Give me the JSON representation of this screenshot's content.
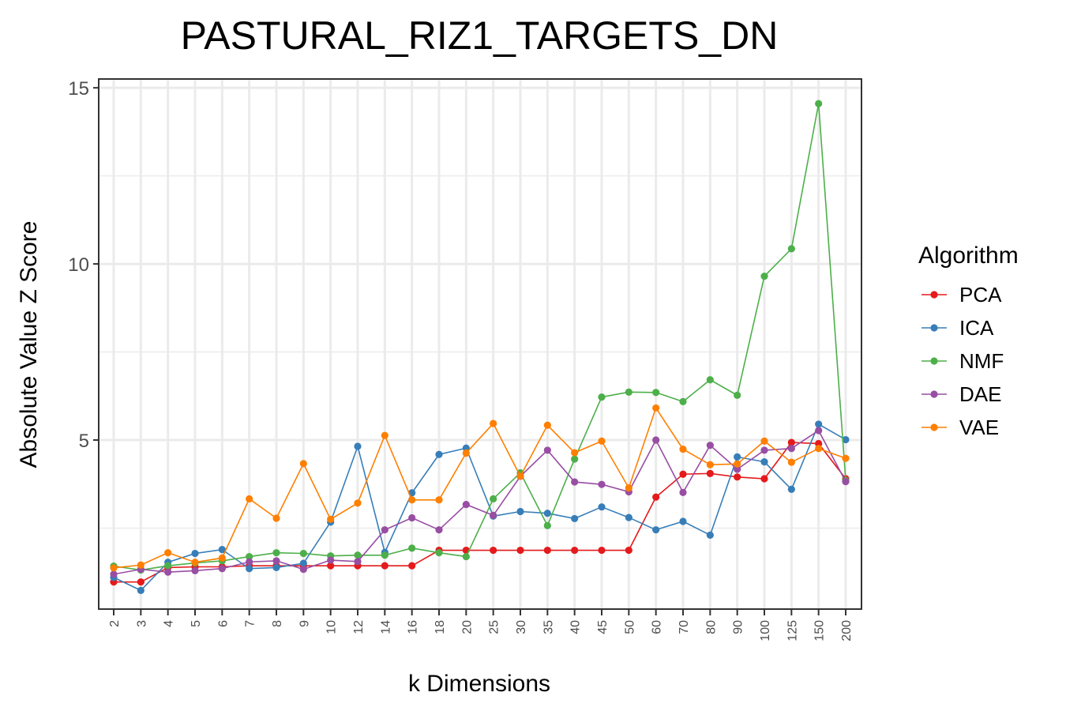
{
  "chart_data": {
    "type": "line",
    "title": "PASTURAL_RIZ1_TARGETS_DN",
    "xlabel": "k Dimensions",
    "ylabel": "Absolute Value Z Score",
    "categories": [
      "2",
      "3",
      "4",
      "5",
      "6",
      "7",
      "8",
      "9",
      "10",
      "12",
      "14",
      "16",
      "18",
      "20",
      "25",
      "30",
      "35",
      "40",
      "45",
      "50",
      "60",
      "70",
      "80",
      "90",
      "100",
      "125",
      "150",
      "200"
    ],
    "yticks": [
      5,
      10,
      15
    ],
    "ylim": [
      0.2,
      15.25
    ],
    "grid": true,
    "legend": {
      "title": "Algorithm",
      "position": "right"
    },
    "series": [
      {
        "name": "PCA",
        "color": "#e41a1c",
        "values": [
          0.97,
          0.97,
          1.38,
          1.4,
          1.4,
          1.43,
          1.43,
          1.43,
          1.43,
          1.43,
          1.43,
          1.43,
          1.87,
          1.87,
          1.87,
          1.87,
          1.87,
          1.87,
          1.87,
          1.87,
          3.38,
          4.03,
          4.05,
          3.95,
          3.9,
          4.93,
          4.9,
          3.9
        ]
      },
      {
        "name": "ICA",
        "color": "#377eb8",
        "values": [
          1.1,
          0.73,
          1.53,
          1.78,
          1.89,
          1.35,
          1.38,
          1.5,
          2.67,
          4.82,
          1.81,
          3.5,
          4.59,
          4.77,
          2.84,
          2.97,
          2.92,
          2.77,
          3.1,
          2.8,
          2.45,
          2.69,
          2.3,
          4.52,
          4.38,
          3.6,
          5.45,
          5.01
        ]
      },
      {
        "name": "NMF",
        "color": "#4daf4a",
        "values": [
          1.42,
          1.31,
          1.43,
          1.51,
          1.57,
          1.69,
          1.8,
          1.78,
          1.71,
          1.73,
          1.73,
          1.93,
          1.8,
          1.69,
          3.33,
          4.07,
          2.57,
          4.46,
          6.22,
          6.36,
          6.35,
          6.09,
          6.71,
          6.27,
          9.65,
          10.43,
          14.55,
          3.85
        ]
      },
      {
        "name": "DAE",
        "color": "#984ea3",
        "values": [
          1.19,
          1.33,
          1.25,
          1.29,
          1.35,
          1.54,
          1.57,
          1.33,
          1.59,
          1.55,
          2.45,
          2.79,
          2.45,
          3.17,
          2.86,
          3.97,
          4.71,
          3.81,
          3.74,
          3.53,
          5.0,
          3.51,
          4.85,
          4.17,
          4.71,
          4.76,
          5.27,
          3.82
        ]
      },
      {
        "name": "VAE",
        "color": "#ff7f00",
        "values": [
          1.37,
          1.45,
          1.8,
          1.53,
          1.65,
          3.33,
          2.78,
          4.33,
          2.75,
          3.21,
          5.13,
          3.3,
          3.3,
          4.63,
          5.47,
          3.97,
          5.42,
          4.64,
          4.97,
          3.64,
          5.91,
          4.74,
          4.3,
          4.32,
          4.97,
          4.37,
          4.76,
          4.48
        ]
      }
    ]
  }
}
